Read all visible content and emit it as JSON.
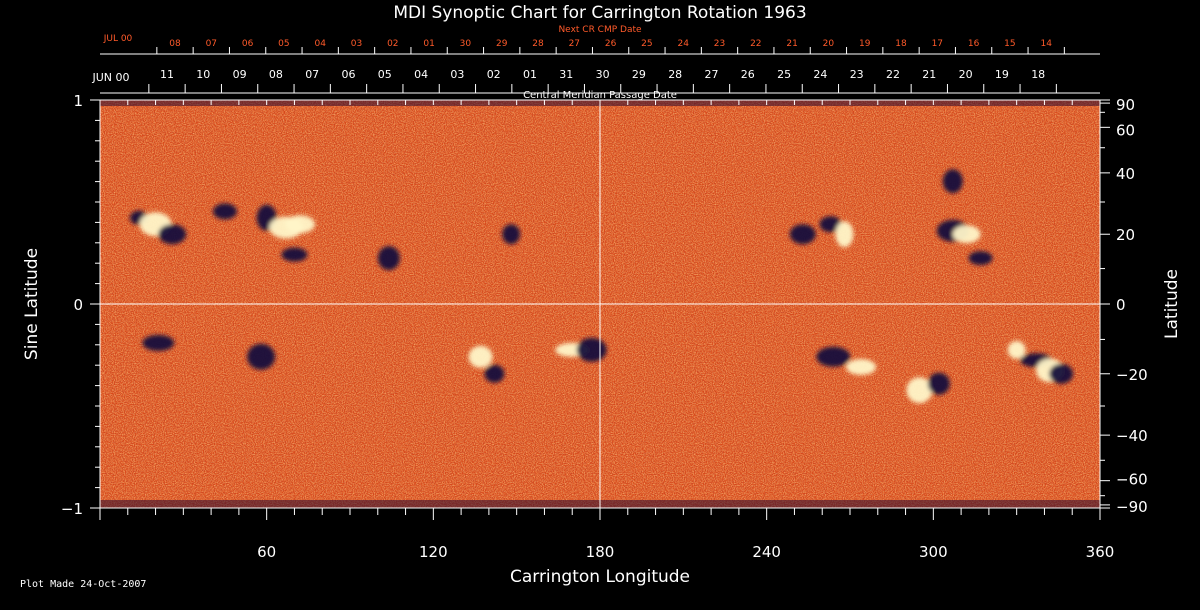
{
  "chart_data": {
    "type": "heatmap",
    "title": "MDI Synoptic Chart for Carrington Rotation 1963",
    "xlabel": "Carrington Longitude",
    "ylabel_left": "Sine Latitude",
    "ylabel_right": "Latitude",
    "x_range": [
      0,
      360
    ],
    "y_range_sine": [
      -1,
      1
    ],
    "x_ticks": [
      60,
      120,
      180,
      240,
      300,
      360
    ],
    "y_ticks_left": [
      "1",
      "0",
      "−1"
    ],
    "y_ticks_right": [
      90,
      60,
      40,
      20,
      0,
      -20,
      -40,
      -60,
      -90
    ],
    "cmp_axis_label": "Central Meridian Passage Date",
    "cmp_start_label": "JUN 00",
    "cmp_dates": [
      "11",
      "10",
      "09",
      "08",
      "07",
      "06",
      "05",
      "04",
      "03",
      "02",
      "01",
      "31",
      "30",
      "29",
      "28",
      "27",
      "26",
      "25",
      "24",
      "23",
      "22",
      "21",
      "20",
      "19",
      "18"
    ],
    "next_cr_label": "Next CR CMP Date",
    "next_cr_start_label": "JUL 00",
    "next_cr_dates": [
      "08",
      "07",
      "06",
      "05",
      "04",
      "03",
      "02",
      "01",
      "30",
      "29",
      "28",
      "27",
      "26",
      "25",
      "24",
      "23",
      "22",
      "21",
      "20",
      "19",
      "18",
      "17",
      "16",
      "15",
      "14"
    ],
    "colors": {
      "background_field": "#e0501a",
      "positive_polarity": "#fff6c8",
      "negative_polarity": "#14103c",
      "axes": "#ffffff",
      "next_cr_text": "#ff5a2a"
    },
    "active_regions": [
      {
        "lon": 14,
        "lat": 25,
        "polarity": "negative"
      },
      {
        "lon": 20,
        "lat": 23,
        "polarity": "positive"
      },
      {
        "lon": 26,
        "lat": 20,
        "polarity": "negative"
      },
      {
        "lon": 45,
        "lat": 27,
        "polarity": "negative"
      },
      {
        "lon": 60,
        "lat": 25,
        "polarity": "negative"
      },
      {
        "lon": 67,
        "lat": 22,
        "polarity": "positive"
      },
      {
        "lon": 72,
        "lat": 23,
        "polarity": "positive"
      },
      {
        "lon": 70,
        "lat": 14,
        "polarity": "negative"
      },
      {
        "lon": 104,
        "lat": 13,
        "polarity": "negative"
      },
      {
        "lon": 148,
        "lat": 20,
        "polarity": "negative"
      },
      {
        "lon": 21,
        "lat": -11,
        "polarity": "negative"
      },
      {
        "lon": 58,
        "lat": -15,
        "polarity": "negative"
      },
      {
        "lon": 137,
        "lat": -15,
        "polarity": "positive"
      },
      {
        "lon": 142,
        "lat": -20,
        "polarity": "negative"
      },
      {
        "lon": 170,
        "lat": -13,
        "polarity": "positive"
      },
      {
        "lon": 177,
        "lat": -13,
        "polarity": "negative"
      },
      {
        "lon": 253,
        "lat": 20,
        "polarity": "negative"
      },
      {
        "lon": 263,
        "lat": 23,
        "polarity": "negative"
      },
      {
        "lon": 268,
        "lat": 20,
        "polarity": "positive"
      },
      {
        "lon": 307,
        "lat": 21,
        "polarity": "negative"
      },
      {
        "lon": 312,
        "lat": 20,
        "polarity": "positive"
      },
      {
        "lon": 317,
        "lat": 13,
        "polarity": "negative"
      },
      {
        "lon": 307,
        "lat": 37,
        "polarity": "negative"
      },
      {
        "lon": 264,
        "lat": -15,
        "polarity": "negative"
      },
      {
        "lon": 274,
        "lat": -18,
        "polarity": "positive"
      },
      {
        "lon": 295,
        "lat": -25,
        "polarity": "positive"
      },
      {
        "lon": 302,
        "lat": -23,
        "polarity": "negative"
      },
      {
        "lon": 330,
        "lat": -13,
        "polarity": "positive"
      },
      {
        "lon": 337,
        "lat": -16,
        "polarity": "negative"
      },
      {
        "lon": 342,
        "lat": -19,
        "polarity": "positive"
      },
      {
        "lon": 346,
        "lat": -20,
        "polarity": "negative"
      }
    ]
  },
  "footer": {
    "plot_made": "Plot Made 24-Oct-2007"
  }
}
